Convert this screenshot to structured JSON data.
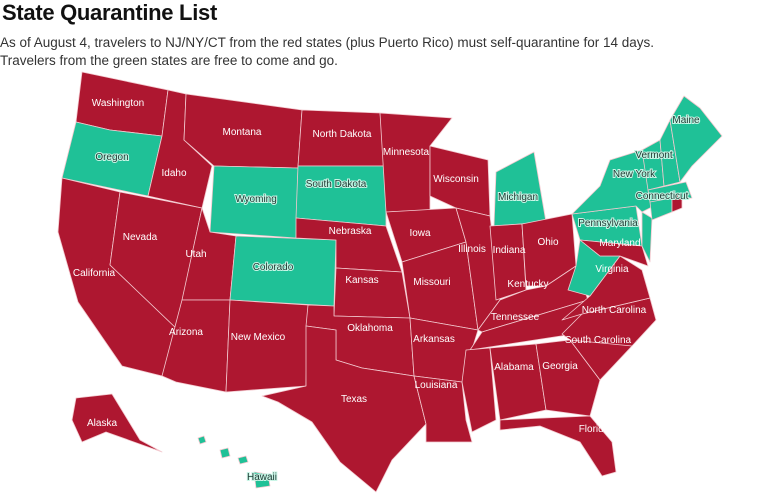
{
  "title": "State Quarantine List",
  "subtitle_line1": "As of August 4, travelers to NJ/NY/CT from the red states (plus Puerto Rico) must self-quarantine for 14 days.",
  "subtitle_line2": "Travelers from the green states are free to come and go.",
  "colors": {
    "quarantine": "#ae1730",
    "free": "#1fc197"
  },
  "states": [
    {
      "name": "Washington",
      "status": "quarantine",
      "label": "Washington"
    },
    {
      "name": "Oregon",
      "status": "free",
      "label": "Oregon"
    },
    {
      "name": "California",
      "status": "quarantine",
      "label": "California"
    },
    {
      "name": "Nevada",
      "status": "quarantine",
      "label": "Nevada"
    },
    {
      "name": "Idaho",
      "status": "quarantine",
      "label": "Idaho"
    },
    {
      "name": "Montana",
      "status": "quarantine",
      "label": "Montana"
    },
    {
      "name": "Wyoming",
      "status": "free",
      "label": "Wyoming"
    },
    {
      "name": "Utah",
      "status": "quarantine",
      "label": "Utah"
    },
    {
      "name": "Colorado",
      "status": "free",
      "label": "Colorado"
    },
    {
      "name": "Arizona",
      "status": "quarantine",
      "label": "Arizona"
    },
    {
      "name": "New Mexico",
      "status": "quarantine",
      "label": "New Mexico"
    },
    {
      "name": "North Dakota",
      "status": "quarantine",
      "label": "North Dakota"
    },
    {
      "name": "South Dakota",
      "status": "free",
      "label": "South Dakota"
    },
    {
      "name": "Nebraska",
      "status": "quarantine",
      "label": "Nebraska"
    },
    {
      "name": "Kansas",
      "status": "quarantine",
      "label": "Kansas"
    },
    {
      "name": "Oklahoma",
      "status": "quarantine",
      "label": "Oklahoma"
    },
    {
      "name": "Texas",
      "status": "quarantine",
      "label": "Texas"
    },
    {
      "name": "Minnesota",
      "status": "quarantine",
      "label": "Minnesota"
    },
    {
      "name": "Iowa",
      "status": "quarantine",
      "label": "Iowa"
    },
    {
      "name": "Missouri",
      "status": "quarantine",
      "label": "Missouri"
    },
    {
      "name": "Arkansas",
      "status": "quarantine",
      "label": "Arkansas"
    },
    {
      "name": "Louisiana",
      "status": "quarantine",
      "label": "Louisiana"
    },
    {
      "name": "Wisconsin",
      "status": "quarantine",
      "label": "Wisconsin"
    },
    {
      "name": "Illinois",
      "status": "quarantine",
      "label": "Illinois"
    },
    {
      "name": "Michigan",
      "status": "free",
      "label": "Michigan"
    },
    {
      "name": "Indiana",
      "status": "quarantine",
      "label": "Indiana"
    },
    {
      "name": "Ohio",
      "status": "quarantine",
      "label": "Ohio"
    },
    {
      "name": "Kentucky",
      "status": "quarantine",
      "label": "Kentucky"
    },
    {
      "name": "Tennessee",
      "status": "quarantine",
      "label": "Tennessee"
    },
    {
      "name": "Mississippi",
      "status": "quarantine",
      "label": ""
    },
    {
      "name": "Alabama",
      "status": "quarantine",
      "label": "Alabama"
    },
    {
      "name": "Georgia",
      "status": "quarantine",
      "label": "Georgia"
    },
    {
      "name": "Florida",
      "status": "quarantine",
      "label": "Florida"
    },
    {
      "name": "South Carolina",
      "status": "quarantine",
      "label": "South Carolina"
    },
    {
      "name": "North Carolina",
      "status": "quarantine",
      "label": "North Carolina"
    },
    {
      "name": "Virginia",
      "status": "quarantine",
      "label": "Virginia"
    },
    {
      "name": "West Virginia",
      "status": "free",
      "label": ""
    },
    {
      "name": "Pennsylvania",
      "status": "free",
      "label": "Pennsylvania"
    },
    {
      "name": "New York",
      "status": "free",
      "label": "New York"
    },
    {
      "name": "Maryland",
      "status": "quarantine",
      "label": "Maryland"
    },
    {
      "name": "New Jersey",
      "status": "free",
      "label": ""
    },
    {
      "name": "Vermont",
      "status": "free",
      "label": "Vermont"
    },
    {
      "name": "New Hampshire",
      "status": "free",
      "label": ""
    },
    {
      "name": "Maine",
      "status": "free",
      "label": "Maine"
    },
    {
      "name": "Massachusetts",
      "status": "free",
      "label": ""
    },
    {
      "name": "Connecticut",
      "status": "free",
      "label": "Connecticut"
    },
    {
      "name": "Rhode Island",
      "status": "quarantine",
      "label": ""
    },
    {
      "name": "Alaska",
      "status": "quarantine",
      "label": "Alaska"
    },
    {
      "name": "Hawaii",
      "status": "free",
      "label": "Hawaii"
    }
  ]
}
